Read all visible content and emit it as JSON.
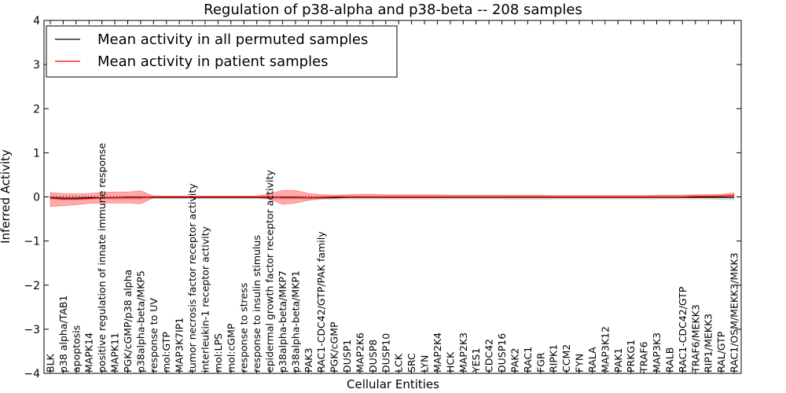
{
  "chart_data": {
    "type": "line",
    "title": "Regulation of p38-alpha and p38-beta -- 208 samples",
    "xlabel": "Cellular Entities",
    "ylabel": "Inferred Activity",
    "ylim": [
      -4,
      4
    ],
    "yticks": [
      4,
      3,
      2,
      1,
      0,
      -1,
      -2,
      -3,
      -4
    ],
    "grid": false,
    "legend_position": "top-left",
    "categories": [
      "BLK",
      "p38 alpha/TAB1",
      "apoptosis",
      "MAPK14",
      "positive regulation of innate immune response",
      "MAPK11",
      "PGK/cGMP/p38 alpha",
      "p38alpha-beta/MKP5",
      "response to UV",
      "mol:GTP",
      "MAP3K7IP1",
      "tumor necrosis factor receptor activity",
      "interleukin-1 receptor activity",
      "mol:LPS",
      "mol:cGMP",
      "response to stress",
      "response to insulin stimulus",
      "epidermal growth factor receptor activity",
      "p38alpha-beta/MKP7",
      "p38alpha-beta/MKP1",
      "PAK3",
      "RAC1-CDC42/GTP/PAK family",
      "PGK/cGMP",
      "DUSP1",
      "MAP2K6",
      "DUSP8",
      "DUSP10",
      "LCK",
      "SRC",
      "LYN",
      "MAP2K4",
      "HCK",
      "MAP2K3",
      "YES1",
      "CDC42",
      "DUSP16",
      "PAK2",
      "RAC1",
      "FGR",
      "RIPK1",
      "CCM2",
      "FYN",
      "RALA",
      "MAP3K12",
      "PAK1",
      "PRKG1",
      "TRAF6",
      "MAP3K3",
      "RALB",
      "RAC1-CDC42/GTP",
      "TRAF6/MEKK3",
      "RIP1/MEKK3",
      "RAL/GTP",
      "RAC1/OSM/MEKK3/MKK3"
    ],
    "series": [
      {
        "name": "Mean activity in all permuted samples",
        "color": "#000000",
        "band_color": "#bbbbbb",
        "values": [
          -0.02,
          -0.03,
          -0.03,
          -0.02,
          -0.02,
          -0.02,
          -0.01,
          -0.01,
          -0.01,
          -0.01,
          -0.01,
          -0.01,
          -0.01,
          -0.01,
          -0.01,
          -0.01,
          -0.01,
          -0.01,
          -0.01,
          -0.01,
          -0.02,
          -0.02,
          -0.02,
          -0.01,
          -0.01,
          -0.01,
          -0.01,
          -0.01,
          -0.01,
          -0.01,
          -0.01,
          -0.01,
          -0.01,
          -0.01,
          -0.01,
          -0.01,
          -0.01,
          -0.01,
          -0.01,
          -0.01,
          -0.01,
          -0.01,
          -0.01,
          -0.01,
          -0.01,
          -0.01,
          -0.01,
          -0.01,
          -0.01,
          -0.01,
          -0.01,
          -0.01,
          -0.01,
          -0.01
        ],
        "lower": [
          -0.06,
          -0.07,
          -0.07,
          -0.06,
          -0.05,
          -0.05,
          -0.05,
          -0.05,
          -0.04,
          -0.04,
          -0.04,
          -0.04,
          -0.04,
          -0.04,
          -0.04,
          -0.04,
          -0.04,
          -0.05,
          -0.05,
          -0.05,
          -0.06,
          -0.06,
          -0.06,
          -0.05,
          -0.05,
          -0.05,
          -0.05,
          -0.05,
          -0.05,
          -0.05,
          -0.05,
          -0.05,
          -0.05,
          -0.05,
          -0.05,
          -0.05,
          -0.06,
          -0.06,
          -0.06,
          -0.05,
          -0.05,
          -0.05,
          -0.05,
          -0.05,
          -0.05,
          -0.05,
          -0.05,
          -0.05,
          -0.05,
          -0.05,
          -0.05,
          -0.05,
          -0.06,
          -0.07
        ],
        "upper": [
          0.03,
          0.02,
          0.02,
          0.02,
          0.02,
          0.02,
          0.02,
          0.02,
          0.02,
          0.02,
          0.02,
          0.02,
          0.02,
          0.02,
          0.02,
          0.02,
          0.02,
          0.02,
          0.02,
          0.02,
          0.02,
          0.02,
          0.02,
          0.03,
          0.03,
          0.03,
          0.03,
          0.03,
          0.03,
          0.03,
          0.03,
          0.03,
          0.03,
          0.03,
          0.03,
          0.03,
          0.03,
          0.03,
          0.03,
          0.03,
          0.03,
          0.03,
          0.03,
          0.03,
          0.03,
          0.03,
          0.03,
          0.03,
          0.03,
          0.03,
          0.03,
          0.03,
          0.03,
          0.04
        ]
      },
      {
        "name": "Mean activity in patient samples",
        "color": "#ff0000",
        "band_color": "#ff4444",
        "values": [
          -0.03,
          -0.05,
          -0.05,
          -0.04,
          -0.02,
          -0.02,
          -0.02,
          -0.02,
          0.0,
          0.0,
          0.0,
          0.0,
          0.0,
          0.0,
          0.0,
          0.0,
          0.0,
          0.0,
          -0.02,
          -0.02,
          -0.02,
          -0.01,
          0.0,
          0.0,
          0.0,
          0.0,
          0.0,
          0.0,
          0.0,
          0.0,
          0.0,
          0.0,
          0.0,
          0.0,
          0.0,
          0.0,
          0.0,
          0.0,
          0.0,
          0.0,
          0.0,
          0.0,
          0.0,
          0.0,
          0.0,
          0.0,
          0.0,
          0.0,
          0.0,
          0.0,
          0.01,
          0.01,
          0.02,
          0.04
        ],
        "lower": [
          -0.22,
          -0.2,
          -0.18,
          -0.15,
          -0.14,
          -0.14,
          -0.14,
          -0.16,
          -0.02,
          -0.02,
          -0.02,
          -0.02,
          -0.02,
          -0.02,
          -0.02,
          -0.02,
          -0.02,
          -0.05,
          -0.17,
          -0.14,
          -0.08,
          -0.04,
          -0.02,
          -0.01,
          -0.01,
          -0.01,
          -0.01,
          -0.01,
          -0.01,
          -0.01,
          -0.01,
          -0.01,
          -0.01,
          -0.01,
          -0.01,
          -0.01,
          -0.01,
          -0.01,
          -0.01,
          -0.01,
          -0.01,
          -0.01,
          -0.01,
          -0.01,
          -0.01,
          -0.01,
          -0.01,
          -0.01,
          -0.01,
          -0.01,
          -0.01,
          -0.01,
          -0.01,
          -0.01
        ],
        "upper": [
          0.1,
          0.08,
          0.07,
          0.08,
          0.1,
          0.11,
          0.11,
          0.14,
          0.02,
          0.02,
          0.02,
          0.02,
          0.02,
          0.02,
          0.02,
          0.02,
          0.02,
          0.07,
          0.15,
          0.15,
          0.08,
          0.05,
          0.04,
          0.05,
          0.06,
          0.06,
          0.05,
          0.05,
          0.05,
          0.05,
          0.05,
          0.04,
          0.04,
          0.04,
          0.04,
          0.04,
          0.04,
          0.04,
          0.04,
          0.03,
          0.03,
          0.03,
          0.03,
          0.03,
          0.03,
          0.03,
          0.03,
          0.04,
          0.04,
          0.04,
          0.05,
          0.05,
          0.06,
          0.09
        ]
      }
    ]
  }
}
